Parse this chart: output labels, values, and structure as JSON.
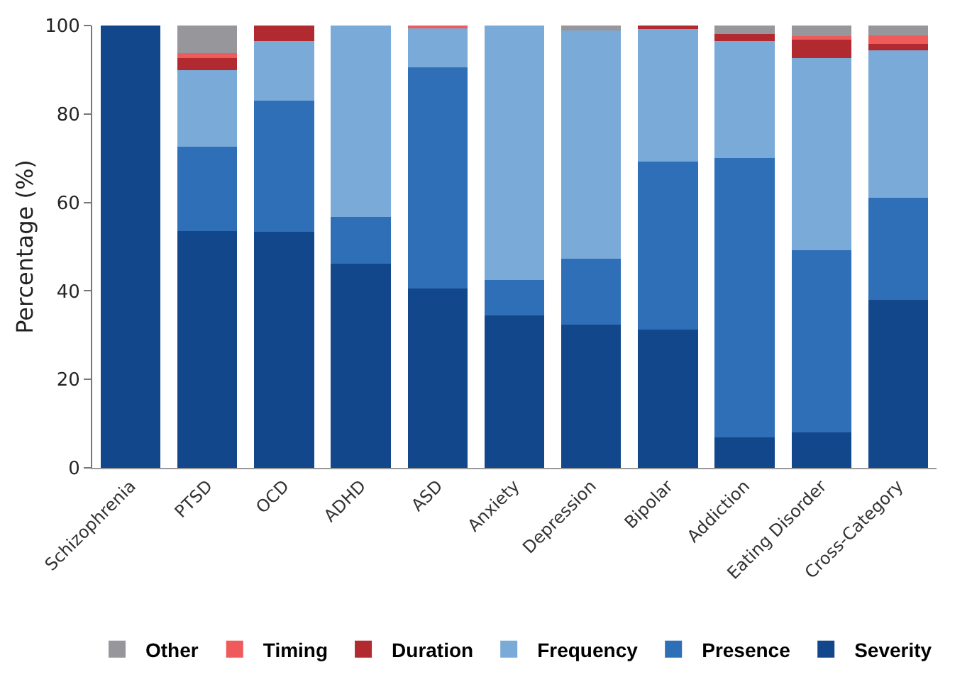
{
  "chart_data": {
    "type": "bar",
    "stacked": true,
    "ylabel": "Percentage (%)",
    "categories": [
      "Schizophrenia",
      "PTSD",
      "OCD",
      "ADHD",
      "ASD",
      "Anxiety",
      "Depression",
      "Bipolar",
      "Addiction",
      "Eating Disorder",
      "Cross-Category"
    ],
    "series": [
      {
        "name": "Severity",
        "color": "#13478c",
        "values": [
          100,
          53.6,
          53.3,
          46.1,
          40.6,
          34.5,
          32.3,
          31.3,
          6.9,
          8.0,
          38.0
        ]
      },
      {
        "name": "Presence",
        "color": "#2f6fb7",
        "values": [
          0,
          19.0,
          29.7,
          10.6,
          49.9,
          8.0,
          14.9,
          37.9,
          63.1,
          41.2,
          23.0
        ]
      },
      {
        "name": "Frequency",
        "color": "#7aaad8",
        "values": [
          0,
          17.3,
          13.5,
          43.3,
          9.0,
          57.5,
          51.7,
          30.0,
          26.5,
          43.4,
          33.4
        ]
      },
      {
        "name": "Duration",
        "color": "#b02a30",
        "values": [
          0,
          2.7,
          3.5,
          0,
          0,
          0,
          0,
          0.8,
          1.6,
          4.4,
          1.4
        ]
      },
      {
        "name": "Timing",
        "color": "#ef5b5b",
        "values": [
          0,
          1.2,
          0,
          0,
          0.5,
          0,
          0,
          0,
          0,
          0.6,
          2.0
        ]
      },
      {
        "name": "Other",
        "color": "#96969b",
        "values": [
          0,
          6.2,
          0,
          0,
          0,
          0,
          1.1,
          0,
          1.9,
          2.4,
          2.2
        ]
      }
    ],
    "ylim": [
      0,
      100
    ],
    "yticks": [
      0,
      20,
      40,
      60,
      80,
      100
    ],
    "grid": false,
    "legend": "bottom"
  }
}
